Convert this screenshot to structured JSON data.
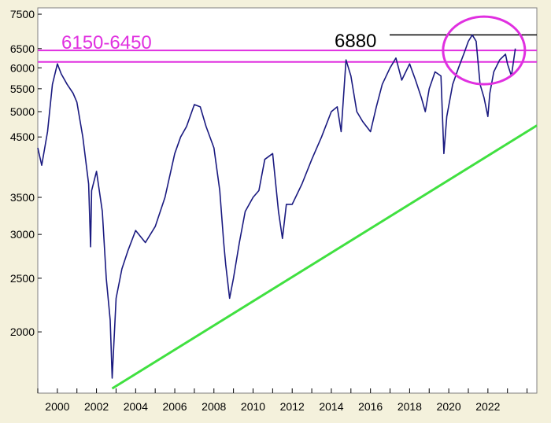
{
  "chart_data": {
    "type": "line",
    "title": "",
    "xlabel": "",
    "ylabel": "",
    "y_scale": "log",
    "grid": false,
    "legend": "none",
    "ylim": [
      1550,
      7700
    ],
    "xlim": [
      1999.0,
      2024.5
    ],
    "y_ticks": [
      2000,
      2500,
      3000,
      3500,
      4500,
      5000,
      5500,
      6000,
      6500,
      7500
    ],
    "x_ticks": [
      2000,
      2002,
      2004,
      2006,
      2008,
      2010,
      2012,
      2014,
      2016,
      2018,
      2020,
      2022
    ],
    "series": [
      {
        "color": "#1a1a80",
        "points": [
          [
            1999.0,
            4300
          ],
          [
            1999.2,
            4000
          ],
          [
            1999.5,
            4600
          ],
          [
            1999.75,
            5600
          ],
          [
            2000.0,
            6100
          ],
          [
            2000.2,
            5850
          ],
          [
            2000.5,
            5600
          ],
          [
            2000.8,
            5400
          ],
          [
            2001.0,
            5200
          ],
          [
            2001.3,
            4500
          ],
          [
            2001.6,
            3700
          ],
          [
            2001.7,
            2850
          ],
          [
            2001.75,
            3600
          ],
          [
            2002.0,
            3900
          ],
          [
            2002.3,
            3300
          ],
          [
            2002.5,
            2500
          ],
          [
            2002.7,
            2100
          ],
          [
            2002.8,
            1650
          ],
          [
            2003.0,
            2300
          ],
          [
            2003.3,
            2600
          ],
          [
            2003.6,
            2800
          ],
          [
            2004.0,
            3050
          ],
          [
            2004.5,
            2900
          ],
          [
            2005.0,
            3100
          ],
          [
            2005.5,
            3500
          ],
          [
            2006.0,
            4200
          ],
          [
            2006.3,
            4500
          ],
          [
            2006.6,
            4700
          ],
          [
            2007.0,
            5150
          ],
          [
            2007.3,
            5100
          ],
          [
            2007.6,
            4700
          ],
          [
            2008.0,
            4300
          ],
          [
            2008.3,
            3600
          ],
          [
            2008.5,
            2900
          ],
          [
            2008.6,
            2650
          ],
          [
            2008.8,
            2300
          ],
          [
            2009.0,
            2500
          ],
          [
            2009.3,
            2900
          ],
          [
            2009.6,
            3300
          ],
          [
            2010.0,
            3500
          ],
          [
            2010.3,
            3600
          ],
          [
            2010.6,
            4100
          ],
          [
            2011.0,
            4200
          ],
          [
            2011.3,
            3300
          ],
          [
            2011.5,
            2950
          ],
          [
            2011.7,
            3400
          ],
          [
            2012.0,
            3400
          ],
          [
            2012.5,
            3700
          ],
          [
            2013.0,
            4100
          ],
          [
            2013.5,
            4500
          ],
          [
            2014.0,
            5000
          ],
          [
            2014.3,
            5100
          ],
          [
            2014.5,
            4600
          ],
          [
            2014.75,
            6200
          ],
          [
            2015.0,
            5800
          ],
          [
            2015.3,
            5000
          ],
          [
            2015.6,
            4800
          ],
          [
            2016.0,
            4600
          ],
          [
            2016.3,
            5100
          ],
          [
            2016.6,
            5600
          ],
          [
            2017.0,
            6000
          ],
          [
            2017.3,
            6250
          ],
          [
            2017.6,
            5700
          ],
          [
            2018.0,
            6100
          ],
          [
            2018.3,
            5700
          ],
          [
            2018.6,
            5300
          ],
          [
            2018.8,
            5000
          ],
          [
            2019.0,
            5500
          ],
          [
            2019.3,
            5900
          ],
          [
            2019.6,
            5800
          ],
          [
            2019.75,
            4200
          ],
          [
            2019.9,
            4900
          ],
          [
            2020.2,
            5600
          ],
          [
            2020.5,
            6000
          ],
          [
            2020.8,
            6400
          ],
          [
            2021.0,
            6700
          ],
          [
            2021.2,
            6880
          ],
          [
            2021.4,
            6700
          ],
          [
            2021.6,
            5600
          ],
          [
            2021.8,
            5300
          ],
          [
            2022.0,
            4900
          ],
          [
            2022.1,
            5400
          ],
          [
            2022.3,
            5900
          ],
          [
            2022.6,
            6200
          ],
          [
            2022.9,
            6350
          ],
          [
            2023.0,
            6100
          ],
          [
            2023.2,
            5800
          ],
          [
            2023.4,
            6500
          ]
        ]
      }
    ],
    "trendline": {
      "color": "#40e040",
      "from": [
        2002.8,
        1580
      ],
      "to": [
        2024.5,
        4720
      ]
    },
    "bands": {
      "color": "#e030e0",
      "levels": [
        6150,
        6450
      ],
      "label": "6150-6450"
    },
    "level": {
      "color": "#000000",
      "value": 6880,
      "label": "6880"
    },
    "highlight": {
      "color": "#e030e0",
      "center": [
        2021.8,
        6450
      ]
    }
  }
}
